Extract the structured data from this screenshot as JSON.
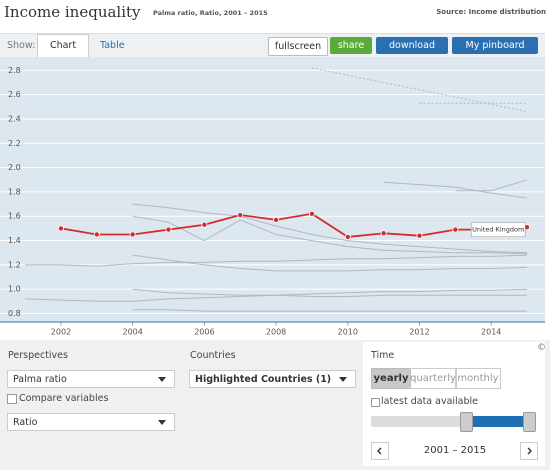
{
  "header": {
    "title": "Income inequality",
    "subtitle": "Palma ratio, Ratio, 2001 – 2015",
    "source": "Source: Income distribution"
  },
  "toolbar": {
    "show": "Show:",
    "tabs": [
      "Chart",
      "Table"
    ],
    "buttons": [
      "fullscreen",
      "share",
      "download",
      "My pinboard"
    ]
  },
  "chart_data": {
    "type": "line",
    "x": [
      2001,
      2002,
      2003,
      2004,
      2005,
      2006,
      2007,
      2008,
      2009,
      2010,
      2011,
      2012,
      2013,
      2014,
      2015
    ],
    "xlim": [
      2000.3,
      2015.5
    ],
    "xticks": [
      2002,
      2004,
      2006,
      2008,
      2010,
      2012,
      2014
    ],
    "ylim": [
      0.73,
      2.91
    ],
    "yticks": [
      {
        "value": 0.8,
        "label": "0.8"
      },
      {
        "value": 1,
        "label": "1.0"
      },
      1.2,
      1.4,
      1.6,
      1.8,
      {
        "value": 2,
        "label": "2.0"
      },
      2.2,
      2.4,
      2.6,
      2.8
    ],
    "grid": true,
    "series": [
      {
        "color": "#b0b8c0",
        "style": "dotted",
        "values": [
          null,
          null,
          null,
          null,
          null,
          null,
          null,
          null,
          2.82,
          2.76,
          2.7,
          2.64,
          2.58,
          2.52,
          2.46
        ]
      },
      {
        "color": "#b0b8c0",
        "style": "dotted",
        "values": [
          null,
          null,
          null,
          null,
          null,
          null,
          null,
          null,
          null,
          null,
          null,
          2.53,
          2.53,
          2.53,
          2.53
        ]
      },
      {
        "color": "#b0b8c0",
        "values": [
          null,
          null,
          null,
          null,
          null,
          null,
          null,
          null,
          null,
          null,
          1.88,
          1.86,
          1.84,
          1.79,
          1.75
        ]
      },
      {
        "color": "#b0b8c0",
        "values": [
          null,
          null,
          null,
          null,
          null,
          null,
          null,
          null,
          null,
          null,
          null,
          null,
          1.81,
          1.81,
          1.9
        ]
      },
      {
        "color": "#b0b8c0",
        "values": [
          null,
          null,
          null,
          1.7,
          1.67,
          1.63,
          1.6,
          1.52,
          1.45,
          1.4,
          1.37,
          1.35,
          1.33,
          1.31,
          1.3
        ]
      },
      {
        "color": "#b0b8c0",
        "values": [
          null,
          null,
          null,
          1.6,
          1.55,
          1.4,
          1.57,
          1.45,
          1.4,
          1.35,
          1.32,
          1.31,
          1.3,
          1.3,
          1.29
        ]
      },
      {
        "color": "#b0b8c0",
        "values": [
          1.2,
          1.2,
          1.19,
          1.21,
          1.22,
          1.22,
          1.23,
          1.23,
          1.24,
          1.25,
          1.25,
          1.26,
          1.27,
          1.27,
          1.28
        ]
      },
      {
        "color": "#b0b8c0",
        "values": [
          null,
          null,
          null,
          1.28,
          1.24,
          1.2,
          1.17,
          1.15,
          1.15,
          1.15,
          1.16,
          1.16,
          1.17,
          1.17,
          1.18
        ]
      },
      {
        "color": "#b0b8c0",
        "values": [
          0.92,
          0.91,
          0.9,
          0.9,
          0.92,
          0.93,
          0.94,
          0.95,
          0.96,
          0.97,
          0.98,
          0.98,
          0.99,
          0.99,
          1.0
        ]
      },
      {
        "color": "#b0b8c0",
        "values": [
          null,
          null,
          null,
          1.0,
          0.97,
          0.96,
          0.95,
          0.95,
          0.94,
          0.94,
          0.95,
          0.95,
          0.95,
          0.95,
          0.95
        ]
      },
      {
        "color": "#b0b8c0",
        "values": [
          null,
          null,
          null,
          0.83,
          0.83,
          0.82,
          0.82,
          0.82,
          0.82,
          0.82,
          0.82,
          0.82,
          0.82,
          0.82,
          0.82
        ]
      },
      {
        "name": "United Kingdom",
        "color": "#d62a2a",
        "highlight": true,
        "values": [
          null,
          1.5,
          1.45,
          1.45,
          1.49,
          1.53,
          1.61,
          1.57,
          1.62,
          1.43,
          1.46,
          1.44,
          1.49,
          1.49,
          1.51
        ]
      }
    ]
  },
  "panel": {
    "perspectives": {
      "label": "Perspectives",
      "select": "Palma ratio",
      "compare": "Compare variables",
      "unit": "Ratio"
    },
    "countries": {
      "label": "Countries",
      "select": "Highlighted Countries (1)"
    },
    "time": {
      "label": "Time",
      "frequencies": [
        "yearly",
        "quarterly",
        "monthly"
      ],
      "latest": "latest data available",
      "range": "2001 – 2015"
    },
    "copyright": "©"
  }
}
